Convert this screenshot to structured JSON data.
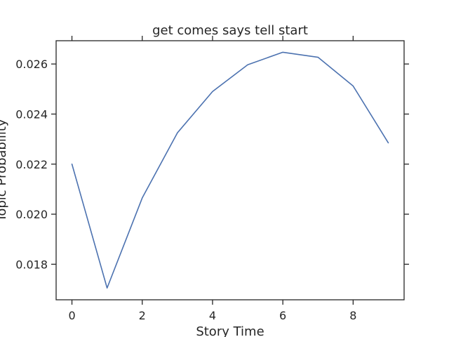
{
  "chart_data": {
    "type": "line",
    "title": "get comes says tell start",
    "xlabel": "Story Time",
    "ylabel": "Topic Probability",
    "x": [
      0,
      1,
      2,
      3,
      4,
      5,
      6,
      7,
      8,
      9
    ],
    "series": [
      {
        "values": [
          0.022,
          0.01705,
          0.02065,
          0.02325,
          0.0249,
          0.02597,
          0.02647,
          0.02627,
          0.02512,
          0.02285
        ],
        "color": "#4c72b0"
      }
    ],
    "xticks": [
      0,
      2,
      4,
      6,
      8
    ],
    "xtick_labels": [
      "0",
      "2",
      "4",
      "6",
      "8"
    ],
    "yticks": [
      0.018,
      0.02,
      0.022,
      0.024,
      0.026
    ],
    "ytick_labels": [
      "0.018",
      "0.020",
      "0.022",
      "0.024",
      "0.026"
    ],
    "xlim": [
      -0.45,
      9.45
    ],
    "ylim": [
      0.01658,
      0.02693
    ],
    "grid": false,
    "tick_sides": [
      "left",
      "right",
      "bottom",
      "top"
    ]
  }
}
